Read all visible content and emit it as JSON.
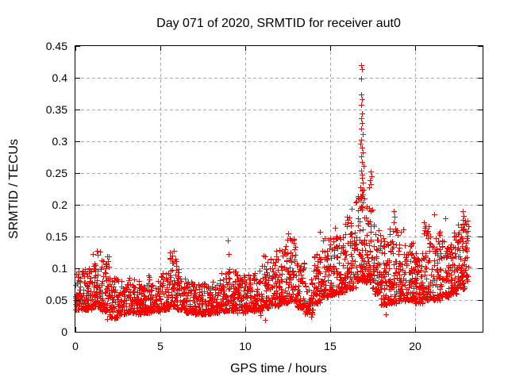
{
  "chart_data": {
    "type": "scatter",
    "title": "Day 071 of 2020, SRMTID for receiver aut0",
    "xlabel": "GPS time / hours",
    "ylabel": "SRMTID / TECUs",
    "xlim": [
      0,
      24
    ],
    "ylim": [
      0,
      0.45
    ],
    "xticks": {
      "values": [
        0,
        5,
        10,
        15,
        20
      ],
      "labels": [
        "0",
        "5",
        "10",
        "15",
        "20"
      ]
    },
    "yticks": {
      "values": [
        0,
        0.05,
        0.1,
        0.15,
        0.2,
        0.25,
        0.3,
        0.35,
        0.4,
        0.45
      ],
      "labels": [
        "0",
        "0.05",
        "0.1",
        "0.15",
        "0.2",
        "0.25",
        "0.3",
        "0.35",
        "0.4",
        "0.45"
      ]
    },
    "grid": {
      "show": true,
      "color": "#a9a9a9",
      "dash": [
        4,
        3
      ]
    },
    "axis_color": "#000000",
    "background": "#ffffff",
    "legend": {
      "visible": false
    },
    "marker": {
      "shape": "plus",
      "color": "#ff0000",
      "size": 7,
      "stroke_width": 1
    },
    "series": [
      {
        "name": "SRMTID",
        "seed": 20200071,
        "bin_width": 0.5,
        "shape_exponent": 1.9,
        "envelope_format": [
          "hour_start",
          "y_min",
          "y_typical_max",
          "n_points",
          "optional_bin_width"
        ],
        "envelope": [
          [
            0.0,
            0.035,
            0.1,
            62
          ],
          [
            0.5,
            0.035,
            0.1,
            62
          ],
          [
            1.0,
            0.04,
            0.128,
            62
          ],
          [
            1.5,
            0.033,
            0.122,
            62
          ],
          [
            2.0,
            0.022,
            0.088,
            56
          ],
          [
            2.5,
            0.028,
            0.08,
            56
          ],
          [
            3.0,
            0.03,
            0.085,
            56
          ],
          [
            3.5,
            0.028,
            0.08,
            56
          ],
          [
            4.0,
            0.03,
            0.09,
            56
          ],
          [
            4.5,
            0.033,
            0.085,
            56
          ],
          [
            5.0,
            0.035,
            0.095,
            56
          ],
          [
            5.5,
            0.04,
            0.128,
            56
          ],
          [
            6.0,
            0.035,
            0.1,
            56
          ],
          [
            6.5,
            0.03,
            0.08,
            56
          ],
          [
            7.0,
            0.028,
            0.076,
            56
          ],
          [
            7.5,
            0.028,
            0.076,
            56
          ],
          [
            8.0,
            0.03,
            0.08,
            56
          ],
          [
            8.5,
            0.033,
            0.095,
            56
          ],
          [
            9.0,
            0.033,
            0.1,
            56
          ],
          [
            9.5,
            0.03,
            0.095,
            56
          ],
          [
            10.0,
            0.033,
            0.092,
            56
          ],
          [
            10.5,
            0.033,
            0.096,
            56
          ],
          [
            11.0,
            0.038,
            0.12,
            56
          ],
          [
            11.5,
            0.04,
            0.13,
            56
          ],
          [
            12.0,
            0.045,
            0.14,
            56
          ],
          [
            12.5,
            0.048,
            0.15,
            56
          ],
          [
            13.0,
            0.038,
            0.11,
            56
          ],
          [
            13.5,
            0.028,
            0.085,
            56
          ],
          [
            14.0,
            0.045,
            0.125,
            58
          ],
          [
            14.5,
            0.055,
            0.15,
            58
          ],
          [
            15.0,
            0.058,
            0.152,
            58
          ],
          [
            15.5,
            0.062,
            0.162,
            58
          ],
          [
            16.0,
            0.068,
            0.182,
            62
          ],
          [
            16.5,
            0.08,
            0.215,
            66
          ],
          [
            17.0,
            0.078,
            0.2,
            64
          ],
          [
            17.5,
            0.06,
            0.172,
            60
          ],
          [
            18.0,
            0.042,
            0.15,
            60
          ],
          [
            18.5,
            0.045,
            0.168,
            60
          ],
          [
            19.0,
            0.048,
            0.162,
            60
          ],
          [
            19.5,
            0.05,
            0.14,
            60
          ],
          [
            20.0,
            0.045,
            0.13,
            60
          ],
          [
            20.5,
            0.05,
            0.168,
            60
          ],
          [
            21.0,
            0.05,
            0.162,
            60
          ],
          [
            21.5,
            0.055,
            0.15,
            60
          ],
          [
            22.0,
            0.06,
            0.16,
            60
          ],
          [
            22.5,
            0.068,
            0.188,
            62
          ],
          [
            23.0,
            0.08,
            0.185,
            24,
            0.15
          ]
        ],
        "outliers": [
          [
            16.82,
            0.42
          ],
          [
            16.88,
            0.414
          ],
          [
            16.85,
            0.399
          ],
          [
            16.86,
            0.374
          ],
          [
            16.9,
            0.366
          ],
          [
            16.84,
            0.357
          ],
          [
            16.88,
            0.344
          ],
          [
            16.83,
            0.336
          ],
          [
            16.9,
            0.329
          ],
          [
            16.86,
            0.32
          ],
          [
            16.92,
            0.311
          ],
          [
            16.85,
            0.303
          ],
          [
            16.8,
            0.296
          ],
          [
            16.88,
            0.29
          ],
          [
            16.94,
            0.283
          ],
          [
            16.83,
            0.276
          ],
          [
            16.89,
            0.268
          ],
          [
            16.96,
            0.261
          ],
          [
            16.84,
            0.254
          ],
          [
            16.91,
            0.248
          ],
          [
            16.87,
            0.242
          ],
          [
            16.94,
            0.235
          ],
          [
            16.81,
            0.228
          ],
          [
            16.89,
            0.222
          ],
          [
            16.95,
            0.216
          ],
          [
            16.86,
            0.21
          ],
          [
            16.92,
            0.204
          ],
          [
            16.83,
            0.198
          ],
          [
            16.9,
            0.192
          ],
          [
            17.0,
            0.224
          ],
          [
            17.05,
            0.21
          ],
          [
            17.3,
            0.228
          ],
          [
            17.4,
            0.252
          ],
          [
            17.44,
            0.245
          ],
          [
            17.38,
            0.239
          ],
          [
            17.42,
            0.232
          ],
          [
            18.75,
            0.19
          ],
          [
            18.8,
            0.181
          ],
          [
            18.78,
            0.172
          ],
          [
            9.0,
            0.144
          ],
          [
            9.02,
            0.122
          ],
          [
            21.15,
            0.185
          ],
          [
            21.8,
            0.179
          ],
          [
            22.85,
            0.19
          ],
          [
            22.9,
            0.183
          ],
          [
            22.82,
            0.176
          ],
          [
            22.92,
            0.169
          ],
          [
            22.88,
            0.162
          ],
          [
            20.55,
            0.172
          ],
          [
            20.6,
            0.164
          ],
          [
            1.25,
            0.127
          ],
          [
            1.32,
            0.121
          ],
          [
            1.85,
            0.119
          ],
          [
            5.78,
            0.127
          ],
          [
            5.73,
            0.12
          ],
          [
            12.55,
            0.155
          ],
          [
            12.62,
            0.147
          ],
          [
            14.4,
            0.157
          ],
          [
            15.3,
            0.164
          ],
          [
            15.9,
            0.17
          ],
          [
            16.3,
            0.194
          ],
          [
            16.55,
            0.205
          ],
          [
            17.15,
            0.195
          ],
          [
            1.85,
            0.02
          ],
          [
            2.3,
            0.021
          ],
          [
            10.9,
            0.026
          ],
          [
            11.2,
            0.019
          ],
          [
            13.9,
            0.024
          ],
          [
            18.3,
            0.028
          ]
        ]
      }
    ]
  }
}
